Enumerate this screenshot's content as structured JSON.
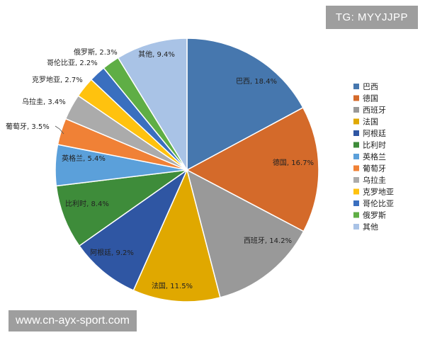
{
  "watermark_top": "TG: MYYJJPP",
  "watermark_bottom": "www.cn-ayx-sport.com",
  "chart_data": {
    "type": "pie",
    "title": "",
    "legend_position": "right",
    "slices": [
      {
        "name": "巴西",
        "value": 18.4,
        "label": "巴西, 18.4%",
        "color": "#4677AE"
      },
      {
        "name": "德国",
        "value": 16.7,
        "label": "德国, 16.7%",
        "color": "#D46A2A"
      },
      {
        "name": "西班牙",
        "value": 14.2,
        "label": "西班牙, 14.2%",
        "color": "#999999"
      },
      {
        "name": "法国",
        "value": 11.5,
        "label": "法国, 11.5%",
        "color": "#E0A800"
      },
      {
        "name": "阿根廷",
        "value": 9.2,
        "label": "阿根廷, 9.2%",
        "color": "#2F56A3"
      },
      {
        "name": "比利时",
        "value": 8.4,
        "label": "比利时, 8.4%",
        "color": "#3E8C3A"
      },
      {
        "name": "英格兰",
        "value": 5.4,
        "label": "英格兰, 5.4%",
        "color": "#5BA0DA"
      },
      {
        "name": "葡萄牙",
        "value": 3.5,
        "label": "葡萄牙, 3.5%",
        "color": "#F08136"
      },
      {
        "name": "乌拉圭",
        "value": 3.4,
        "label": "乌拉圭, 3.4%",
        "color": "#ABABAB"
      },
      {
        "name": "克罗地亚",
        "value": 2.7,
        "label": "克罗地亚, 2.7%",
        "color": "#FFC20E"
      },
      {
        "name": "哥伦比亚",
        "value": 2.2,
        "label": "哥伦比亚, 2.2%",
        "color": "#3A6FBF"
      },
      {
        "name": "俄罗斯",
        "value": 2.3,
        "label": "俄罗斯, 2.3%",
        "color": "#5FAE45"
      },
      {
        "name": "其他",
        "value": 9.4,
        "label": "其他, 9.4%",
        "color": "#A9C3E6"
      }
    ]
  }
}
